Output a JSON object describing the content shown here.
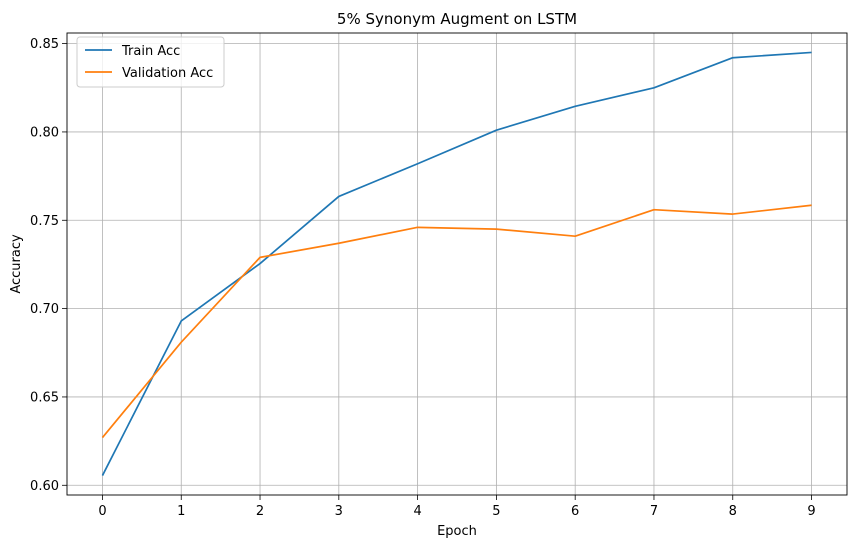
{
  "chart_data": {
    "type": "line",
    "title": "5% Synonym Augment on LSTM",
    "xlabel": "Epoch",
    "ylabel": "Accuracy",
    "x": [
      0,
      1,
      2,
      3,
      4,
      5,
      6,
      7,
      8,
      9
    ],
    "xlim": [
      -0.45,
      9.45
    ],
    "ylim": [
      0.5945,
      0.856
    ],
    "xticks": [
      0,
      1,
      2,
      3,
      4,
      5,
      6,
      7,
      8,
      9
    ],
    "xtick_labels": [
      "0",
      "1",
      "2",
      "3",
      "4",
      "5",
      "6",
      "7",
      "8",
      "9"
    ],
    "yticks": [
      0.6,
      0.65,
      0.7,
      0.75,
      0.8,
      0.85
    ],
    "ytick_labels": [
      "0.60",
      "0.65",
      "0.70",
      "0.75",
      "0.80",
      "0.85"
    ],
    "grid": true,
    "legend_position": "top-left",
    "series": [
      {
        "name": "Train Acc",
        "color": "#1f77b4",
        "values": [
          0.6055,
          0.693,
          0.7255,
          0.7635,
          0.782,
          0.801,
          0.8145,
          0.825,
          0.842,
          0.845
        ]
      },
      {
        "name": "Validation Acc",
        "color": "#ff7f0e",
        "values": [
          0.627,
          0.681,
          0.729,
          0.737,
          0.746,
          0.745,
          0.741,
          0.756,
          0.7535,
          0.7585
        ]
      }
    ]
  }
}
